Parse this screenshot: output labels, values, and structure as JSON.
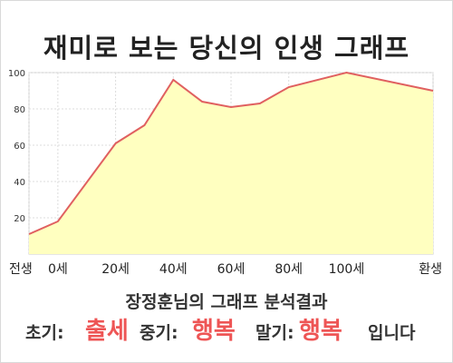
{
  "chart_data": {
    "type": "area",
    "title": "재미로 보는 당신의 인생 그래프",
    "x_labels": [
      "전생",
      "0세",
      "20세",
      "40세",
      "60세",
      "80세",
      "100세",
      "환생"
    ],
    "y_ticks": [
      "20",
      "40",
      "60",
      "80",
      "100"
    ],
    "ylim": [
      0,
      100
    ],
    "grid": true,
    "fill_color": "#ffffc0",
    "line_color": "#e06060",
    "series": [
      {
        "points": [
          {
            "x": "전생",
            "y": 11
          },
          {
            "x": "0세",
            "y": 18
          },
          {
            "x": "20세",
            "y": 61
          },
          {
            "x": "30세",
            "y": 71
          },
          {
            "x": "40세",
            "y": 96
          },
          {
            "x": "50세",
            "y": 84
          },
          {
            "x": "60세",
            "y": 81
          },
          {
            "x": "70세",
            "y": 83
          },
          {
            "x": "80세",
            "y": 92
          },
          {
            "x": "100세",
            "y": 100
          },
          {
            "x": "환생",
            "y": 90
          }
        ]
      }
    ]
  },
  "summary": {
    "title": "장정훈님의 그래프 분석결과",
    "early_label": "초기:",
    "early_value": "출세",
    "mid_label": "중기:",
    "mid_value": "행복",
    "late_label": "말기:",
    "late_value": "행복",
    "ending": "입니다",
    "highlight_color": "#ee5555"
  }
}
